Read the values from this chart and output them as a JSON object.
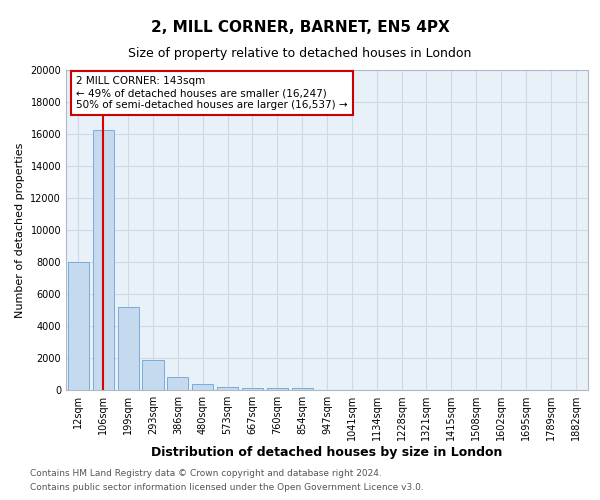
{
  "title1": "2, MILL CORNER, BARNET, EN5 4PX",
  "title2": "Size of property relative to detached houses in London",
  "xlabel": "Distribution of detached houses by size in London",
  "ylabel": "Number of detached properties",
  "bin_labels": [
    "12sqm",
    "106sqm",
    "199sqm",
    "293sqm",
    "386sqm",
    "480sqm",
    "573sqm",
    "667sqm",
    "760sqm",
    "854sqm",
    "947sqm",
    "1041sqm",
    "1134sqm",
    "1228sqm",
    "1321sqm",
    "1415sqm",
    "1508sqm",
    "1602sqm",
    "1695sqm",
    "1789sqm",
    "1882sqm"
  ],
  "bar_values": [
    8000,
    16247,
    5200,
    1850,
    800,
    360,
    210,
    130,
    100,
    150,
    0,
    0,
    0,
    0,
    0,
    0,
    0,
    0,
    0,
    0,
    0
  ],
  "bar_color": "#c5d9ef",
  "bar_edgecolor": "#7aabda",
  "red_line_x": 1.0,
  "red_line_color": "#dd0000",
  "annotation_text": "2 MILL CORNER: 143sqm\n← 49% of detached houses are smaller (16,247)\n50% of semi-detached houses are larger (16,537) →",
  "annotation_box_edgecolor": "#cc0000",
  "annotation_box_facecolor": "#ffffff",
  "ylim": [
    0,
    20000
  ],
  "yticks": [
    0,
    2000,
    4000,
    6000,
    8000,
    10000,
    12000,
    14000,
    16000,
    18000,
    20000
  ],
  "grid_color": "#d0d8e4",
  "background_color": "#e8f0f8",
  "footer1": "Contains HM Land Registry data © Crown copyright and database right 2024.",
  "footer2": "Contains public sector information licensed under the Open Government Licence v3.0.",
  "title1_fontsize": 11,
  "title2_fontsize": 9,
  "xlabel_fontsize": 9,
  "ylabel_fontsize": 8,
  "tick_fontsize": 7,
  "annotation_fontsize": 7.5,
  "footer_fontsize": 6.5
}
